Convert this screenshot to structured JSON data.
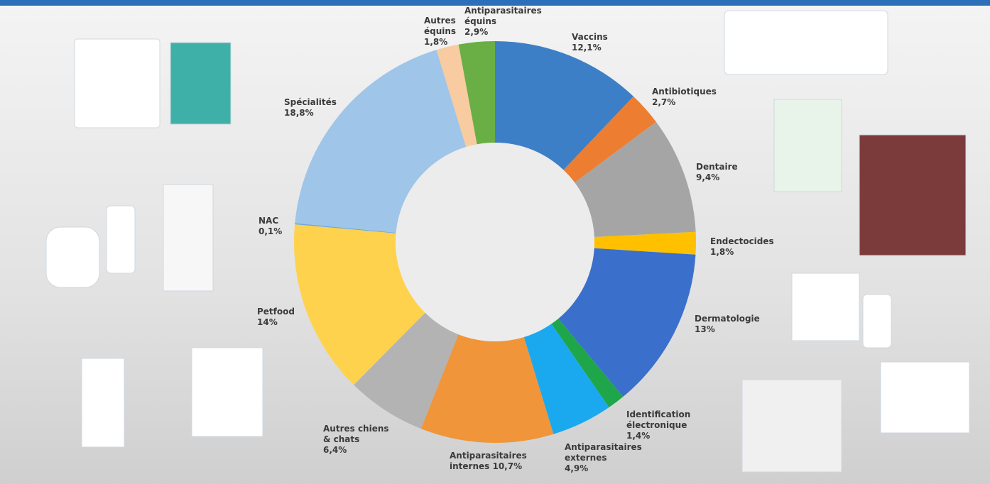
{
  "chart_data": {
    "type": "pie",
    "categories": [
      "Vaccins",
      "Antibiotiques",
      "Dentaire",
      "Endectocides",
      "Dermatologie",
      "Identification\nélectronique",
      "Antiparasitaires\nexternes",
      "Antiparasitaires\ninternes",
      "Autres chiens\n& chats",
      "Petfood",
      "NAC",
      "Spécialités",
      "Autres\néquins",
      "Antiparasitaires\néquins"
    ],
    "values": [
      12.1,
      2.7,
      9.4,
      1.8,
      13,
      1.4,
      4.9,
      10.7,
      6.4,
      14,
      0.1,
      18.8,
      1.8,
      2.9
    ],
    "value_labels": [
      "12,1%",
      "2,7%",
      "9,4%",
      "1,8%",
      "13%",
      "1,4%",
      "4,9%",
      "10,7%",
      "6,4%",
      "14%",
      "0,1%",
      "18,8%",
      "1,8%",
      "2,9%"
    ],
    "colors": [
      "#3d7fc6",
      "#ed7d31",
      "#a5a5a5",
      "#ffc000",
      "#3a6fcc",
      "#1fa64a",
      "#1aa9ef",
      "#f0953a",
      "#b3b3b3",
      "#ffd24d",
      "#6fa8dc",
      "#9fc5e8",
      "#f8cba0",
      "#6aae46"
    ]
  }
}
